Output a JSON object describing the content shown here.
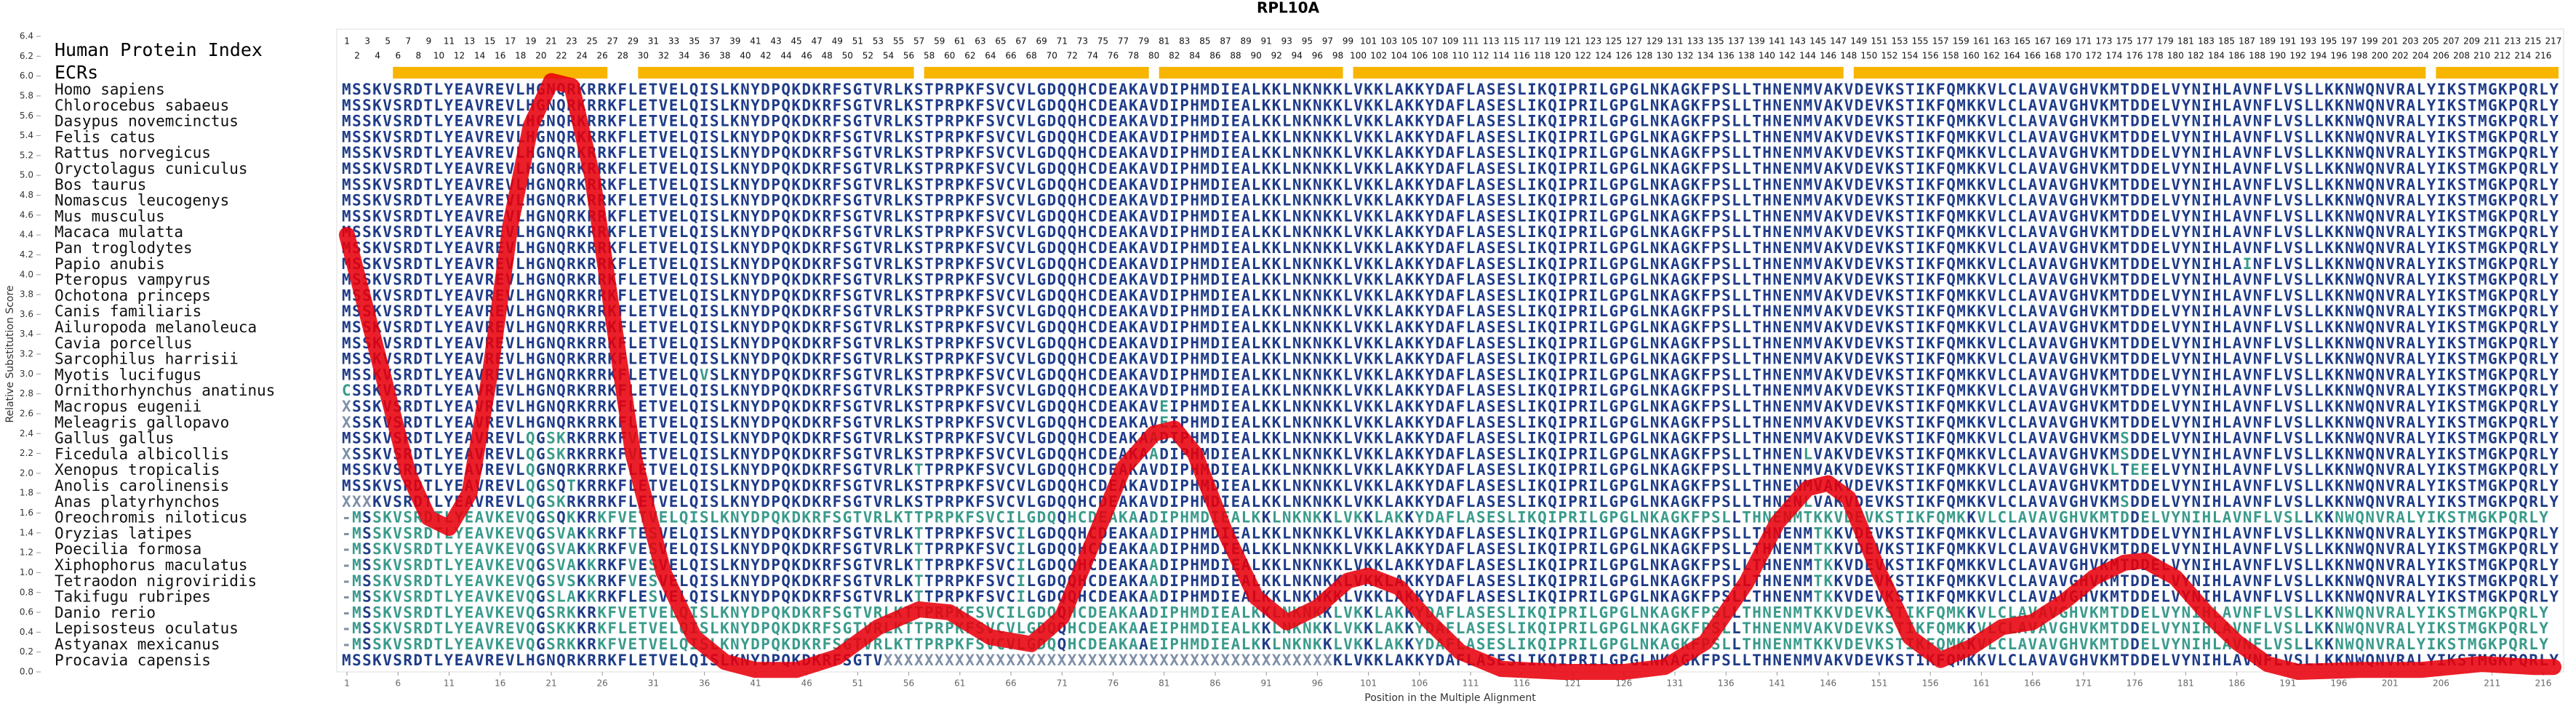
{
  "chart_data": {
    "type": "line",
    "title": "RPL10A",
    "xlabel": "Position in the Multiple Alignment",
    "ylabel": "Relative Substitution Score",
    "index_label": "Human Protein Index",
    "human_index": [
      1,
      2,
      3,
      4,
      5,
      6,
      7,
      8,
      9,
      10,
      11,
      12,
      13,
      14,
      15,
      16,
      17,
      18,
      19,
      20,
      21,
      22,
      23,
      24,
      25,
      26,
      27,
      28,
      29,
      30,
      31,
      32,
      33,
      34,
      35,
      36,
      37,
      38,
      39,
      40,
      41,
      42,
      43,
      44,
      45,
      46,
      47,
      48,
      49,
      50,
      51,
      52,
      53,
      54,
      55,
      56,
      57,
      58,
      59,
      60,
      61,
      62,
      63,
      64,
      65,
      66,
      67,
      68,
      69,
      70,
      71,
      72,
      73,
      74,
      75,
      76,
      77,
      78,
      79,
      80,
      81,
      82,
      83,
      84,
      85,
      86,
      87,
      88,
      89,
      90,
      91,
      92,
      93,
      94,
      95,
      96,
      97,
      98,
      99,
      100,
      101,
      102,
      103,
      104,
      105,
      106,
      107,
      108,
      109,
      110,
      111,
      112,
      113,
      114,
      115,
      116,
      117,
      118,
      119,
      120,
      121,
      122,
      123,
      124,
      125,
      126,
      127,
      128,
      129,
      130,
      131,
      132,
      133,
      134,
      135,
      136,
      137,
      138,
      139,
      140,
      141,
      142,
      143,
      144,
      145,
      146,
      147,
      148,
      149,
      150,
      151,
      152,
      153,
      154,
      155,
      156,
      157,
      158,
      159,
      160,
      161,
      162,
      163,
      164,
      165,
      166,
      167,
      168,
      169,
      170,
      171,
      172,
      173,
      174,
      175,
      176,
      177,
      178,
      179,
      180,
      181,
      182,
      183,
      184,
      185,
      186,
      187,
      188,
      189,
      190,
      191,
      192,
      193,
      194,
      195,
      196,
      197,
      198,
      199,
      200,
      201,
      202,
      203,
      204,
      205,
      206,
      207,
      208,
      209,
      210,
      211,
      212,
      213,
      214,
      215,
      216,
      217
    ],
    "ecr_label": "ECRs",
    "ecr_color": "#f7b500",
    "ecrs": [
      [
        6,
        26
      ],
      [
        30,
        56
      ],
      [
        58,
        79
      ],
      [
        81,
        98
      ],
      [
        100,
        147
      ],
      [
        149,
        204
      ],
      [
        206,
        217
      ]
    ],
    "species": [
      "Homo sapiens",
      "Chlorocebus sabaeus",
      "Dasypus novemcinctus",
      "Felis catus",
      "Rattus norvegicus",
      "Oryctolagus cuniculus",
      "Bos taurus",
      "Nomascus leucogenys",
      "Mus musculus",
      "Macaca mulatta",
      "Pan troglodytes",
      "Papio anubis",
      "Pteropus vampyrus",
      "Ochotona princeps",
      "Canis familiaris",
      "Ailuropoda melanoleuca",
      "Cavia porcellus",
      "Sarcophilus harrisii",
      "Myotis lucifugus",
      "Ornithorhynchus anatinus",
      "Macropus eugenii",
      "Meleagris gallopavo",
      "Gallus gallus",
      "Ficedula albicollis",
      "Xenopus tropicalis",
      "Anolis carolinensis",
      "Anas platyrhynchos",
      "Oreochromis niloticus",
      "Oryzias latipes",
      "Poecilia formosa",
      "Xiphophorus maculatus",
      "Tetraodon nigroviridis",
      "Takifugu rubripes",
      "Danio rerio",
      "Lepisosteus oculatus",
      "Astyanax mexicanus",
      "Procavia capensis"
    ],
    "sequences": [
      "MSSKVSRDTLYEAVREVLHGNQRKRRKFLETVELQISLKNYDPQKDKRFSGTVRLKSTPRPKFSVCVLGDQQHCDEAKAVDIPHMDIEALKKLNKNKKLVKKLAKKYDAFLASESLIKQIPRILGPGLNKAGKFPSLLTHNENMVAKVDEVKSTIKFQMKKVLCLAVAVGHVKMTDDELVYNIHLAVNFLVSLLKKNWQNVRALYIKSTMGKPQRLY",
      "MSSKVSRDTLYEAVREVLHGNQRKRRKFLETVELQISLKNYDPQKDKRFSGTVRLKSTPRPKFSVCVLGDQQHCDEAKAVDIPHMDIEALKKLNKNKKLVKKLAKKYDAFLASESLIKQIPRILGPGLNKAGKFPSLLTHNENMVAKVDEVKSTIKFQMKKVLCLAVAVGHVKMTDDELVYNIHLAVNFLVSLLKKNWQNVRALYIKSTMGKPQRLY",
      "MSSKVSRDTLYEAVREVLHGNQRKRRKFLETVELQISLKNYDPQKDKRFSGTVRLKSTPRPKFSVCVLGDQQHCDEAKAVDIPHMDIEALKKLNKNKKLVKKLAKKYDAFLASESLIKQIPRILGPGLNKAGKFPSLLTHNENMVAKVDEVKSTIKFQMKKVLCLAVAVGHVKMTDDELVYNIHLAVNFLVSLLKKNWQNVRALYIKSTMGKPQRLY",
      "MSSKVSRDTLYEAVREVLHGNQRKRRKFLETVELQISLKNYDPQKDKRFSGTVRLKSTPRPKFSVCVLGDQQHCDEAKAVDIPHMDIEALKKLNKNKKLVKKLAKKYDAFLASESLIKQIPRILGPGLNKAGKFPSLLTHNENMVAKVDEVKSTIKFQMKKVLCLAVAVGHVKMTDDELVYNIHLAVNFLVSLLKKNWQNVRALYIKSTMGKPQRLY",
      "MSSKVSRDTLYEAVREVLHGNQRKRRKFLETVELQISLKNYDPQKDKRFSGTVRLKSTPRPKFSVCVLGDQQHCDEAKAVDIPHMDIEALKKLNKNKKLVKKLAKKYDAFLASESLIKQIPRILGPGLNKAGKFPSLLTHNENMVAKVDEVKSTIKFQMKKVLCLAVAVGHVKMTDDELVYNIHLAVNFLVSLLKKNWQNVRALYIKSTMGKPQRLY",
      "MSSKVSRDTLYEAVREVLHGNQRKRRKFLETVELQISLKNYDPQKDKRFSGTVRLKSTPRPKFSVCVLGDQQHCDEAKAVDIPHMDIEALKKLNKNKKLVKKLAKKYDAFLASESLIKQIPRILGPGLNKAGKFPSLLTHNENMVAKVDEVKSTIKFQMKKVLCLAVAVGHVKMTDDELVYNIHLAVNFLVSLLKKNWQNVRALYIKSTMGKPQRLY",
      "MSSKVSRDTLYEAVREVLHGNQRKRRKFLETVELQISLKNYDPQKDKRFSGTVRLKSTPRPKFSVCVLGDQQHCDEAKAVDIPHMDIEALKKLNKNKKLVKKLAKKYDAFLASESLIKQIPRILGPGLNKAGKFPSLLTHNENMVAKVDEVKSTIKFQMKKVLCLAVAVGHVKMTDDELVYNIHLAVNFLVSLLKKNWQNVRALYIKSTMGKPQRLY",
      "MSSKVSRDTLYEAVREVLHGNQRKRRKFLETVELQISLKNYDPQKDKRFSGTVRLKSTPRPKFSVCVLGDQQHCDEAKAVDIPHMDIEALKKLNKNKKLVKKLAKKYDAFLASESLIKQIPRILGPGLNKAGKFPSLLTHNENMVAKVDEVKSTIKFQMKKVLCLAVAVGHVKMTDDELVYNIHLAVNFLVSLLKKNWQNVRALYIKSTMGKPQRLY",
      "MSSKVSRDTLYEAVREVLHGNQRKRRKFLETVELQISLKNYDPQKDKRFSGTVRLKSTPRPKFSVCVLGDQQHCDEAKAVDIPHMDIEALKKLNKNKKLVKKLAKKYDAFLASESLIKQIPRILGPGLNKAGKFPSLLTHNENMVAKVDEVKSTIKFQMKKVLCLAVAVGHVKMTDDELVYNIHLAVNFLVSLLKKNWQNVRALYIKSTMGKPQRLY",
      "MSSKVSRDTLYEAVREVLHGNQRKRRKFLETVELQISLKNYDPQKDKRFSGTVRLKSTPRPKFSVCVLGDQQHCDEAKAVDIPHMDIEALKKLNKNKKLVKKLAKKYDAFLASESLIKQIPRILGPGLNKAGKFPSLLTHNENMVAKVDEVKSTIKFQMKKVLCLAVAVGHVKMTDDELVYNIHLAVNFLVSLLKKNWQNVRALYIKSTMGKPQRLY",
      "MSSKVSRDTLYEAVREVLHGNQRKRRKFLETVELQISLKNYDPQKDKRFSGTVRLKSTPRPKFSVCVLGDQQHCDEAKAVDIPHMDIEALKKLNKNKKLVKKLAKKYDAFLASESLIKQIPRILGPGLNKAGKFPSLLTHNENMVAKVDEVKSTIKFQMKKVLCLAVAVGHVKMTDDELVYNIHLAVNFLVSLLKKNWQNVRALYIKSTMGKPQRLY",
      "MSSKVSRDTLYEAVREVLHGNQRKRRKFLETVELQISLKNYDPQKDKRFSGTVRLKSTPRPKFSVCVLGDQQHCDEAKAVDIPHMDIEALKKLNKNKKLVKKLAKKYDAFLASESLIKQIPRILGPGLNKAGKFPSLLTHNENMVAKVDEVKSTIKFQMKKVLCLAVAVGHVKMTDDELVYNIHLAINFLVSLLKKNWQNVRALYIKSTMGKPQRLY",
      "MSSKVSRDTLYEAVREVLHGNQRKRRKFLETVELQISLKNYDPQKDKRFSGTVRLKSTPRPKFSVCVLGDQQHCDEAKAVDIPHMDIEALKKLNKNKKLVKKLAKKYDAFLASESLIKQIPRILGPGLNKAGKFPSLLTHNENMVAKVDEVKSTIKFQMKKVLCLAVAVGHVKMTDDELVYNIHLAVNFLVSLLKKNWQNVRALYIKSTMGKPQRLY",
      "MSSKVSRDTLYEAVREVLHGNQRKRRKFLETVELQISLKNYDPQKDKRFSGTVRLKSTPRPKFSVCVLGDQQHCDEAKAVDIPHMDIEALKKLNKNKKLVKKLAKKYDAFLASESLIKQIPRILGPGLNKAGKFPSLLTHNENMVAKVDEVKSTIKFQMKKVLCLAVAVGHVKMTDDELVYNIHLAVNFLVSLLKKNWQNVRALYIKSTMGKPQRLY",
      "MSSKVSRDTLYEAVREVLHGNQRKRRKFLETVELQISLKNYDPQKDKRFSGTVRLKSTPRPKFSVCVLGDQQHCDEAKAVDIPHMDIEALKKLNKNKKLVKKLAKKYDAFLASESLIKQIPRILGPGLNKAGKFPSLLTHNENMVAKVDEVKSTIKFQMKKVLCLAVAVGHVKMTDDELVYNIHLAVNFLVSLLKKNWQNVRALYIKSTMGKPQRLY",
      "MSSKVSRDTLYEAVREVLHGNQRKRRKFLETVELQISLKNYDPQKDKRFSGTVRLKSTPRPKFSVCVLGDQQHCDEAKAVDIPHMDIEALKKLNKNKKLVKKLAKKYDAFLASESLIKQIPRILGPGLNKAGKFPSLLTHNENMVAKVDEVKSTIKFQMKKVLCLAVAVGHVKMTDDELVYNIHLAVNFLVSLLKKNWQNVRALYIKSTMGKPQRLY",
      "MSSKVSRDTLYEAVREVLHGNQRKRRKFLETVELQISLKNYDPQKDKRFSGTVRLKSTPRPKFSVCVLGDQQHCDEAKAVDIPHMDIEALKKLNKNKKLVKKLAKKYDAFLASESLIKQIPRILGPGLNKAGKFPSLLTHNENMVAKVDEVKSTIKFQMKKVLCLAVAVGHVKMTDDELVYNIHLAVNFLVSLLKKNWQNVRALYIKSTMGKPQRLY",
      "MSSKVSRDTLYEAVREVLHGNQRKRRKFLETVELQISLKNYDPQKDKRFSGTVRLKSTPRPKFSVCVLGDQQHCDEAKAVDIPHMDIEALKKLNKNKKLVKKLAKKYDAFLASESLIKQIPRILGPGLNKAGKFPSLLTHNENMVAKVDEVKSTIKFQMKKVLCLAVAVGHVKMTDDELVYNIHLAVNFLVSLLKKNWQNVRALYIKSTMGKPQRLY",
      "MSSKVSRDTLYEAVREVLHGNQRKRRKFLETVELQVSLKNYDPQKDKRFSGTVRLKSTPRPKFSVCVLGDQQHCDEAKAVDIPHMDIEALKKLNKNKKLVKKLAKKYDAFLASESLIKQIPRILGPGLNKAGKFPSLLTHNENMVAKVDEVKSTIKFQMKKVLCLAVAVGHVKMTDDELVYNIHLAVNFLVSLLKKNWQNVRALYIKSTMGKPQRLY",
      "CSSKVSRDTLYEAVREVLHGNQRKRRKFLETVELQISLKNYDPQKDKRFSGTVRLKSTPRPKFSVCVLGDQQHCDEAKAVDIPHMDIEALKKLNKNKKLVKKLAKKYDAFLASESLIKQIPRILGPGLNKAGKFPSLLTHNENMVAKVDEVKSTIKFQMKKVLCLAVAVGHVKMTDDELVYNIHLAVNFLVSLLKKNWQNVRALYIKSTMGKPQRLY",
      "XSSKVSRDTLYEAVREVLHGNQRKRRKFLETVELQISLKNYDPQKDKRFSGTVRLKSTPRPKFSVCVLGDQQHCDEAKAVEIPHMDIEALKKLNKNKKLVKKLAKKYDAFLASESLIKQIPRILGPGLNKAGKFPSLLTHNENMVAKVDEVKSTIKFQMKKVLCLAVAVGHVKMTDDELVYNIHLAVNFLVSLLKKNWQNVRALYIKSTMGKPQRLY",
      "XSSKVSRDTLYEAVREVLHGNQRKRRKFLETVELQISLKNYDPQKDKRFSGTVRLKSTPRPKFSVCVLGDQQHCDEAKAVEIPHMDIEALKKLNKNKKLVKKLAKKYDAFLASESLIKQIPRILGPGLNKAGKFPSLLTHNENMVAKVDEVKSTIKFQMKKVLCLAVAVGHVKMTDDELVYNIHLAVNFLVSLLKKNWQNVRALYIKSTMGKPQRLY",
      "MSSKVSRDTLYEAVREVLQGSKRKRRKFVETVELQISLKNYDPQKDKRFSGTVRLKSTPRPKFSVCVLGDQQHCDEAKAADIPHMDIEALKKLNKNKKLVKKLAKKYDAFLASESLIKQIPRILGPGLNKAGKFPSLLTHNENMVAKVDEVKSTIKFQMKKVLCLAVAVGHVKMSDDELVYNIHLAVNFLVSLLKKNWQNVRALYIKSTMGKPQRLY",
      "XSSKVSRDTLYEAVREVLQGSKRKRRKFVETVELQISLKNYDPQKDKRFSGTVRLKSTPRPKFSVCVLGDQQHCDEAKAADIPHMDIEALKKLNKNKKLVKKLAKKYDAFLASESLIKQIPRILGPGLNKAGKFPSLLTHNENLVAKVDEVKSTIKFQMKKVLCLAVAVGHVKMSDDELVYNIHLAVNFLVSLLKKNWQNVRALYIKSTMGKPQRLY",
      "MSSKVSRDTLYEAVREVLQGNQRKRRKFLETVELQISLKNYDPQKDKRFSGTVRLKTTPRPKFSVCVLGDQQHCDEAKAVDIPHMDIEALKKLNKNKKLVKKLAKKYDAFLASESLIKQIPRILGPGLNKAGKFPSLLTHNENMVAKVDEVKSTIKFQMKKVLCLAVAVGHVKLTEEELVYNIHLAVNFLVSLLKKNWQNVRALYIKSTMGKPQRLY",
      "MSSKVSRDTLYEAVREVLQGSQTKRRKFLETVELQISLKNYDPQKDKRFSGTVRLKSTPRPKFSVCVLGDQQHCDEAKAVDIPHMDIEALKKLNKNKKLVKKLAKKYDAFLASESLIKQIPRILGPGLNKAGKFPSLLTHNENMVAKVDEVKSTIKFQMKKVLCLAVAVGHVKMTDDELVYNIHLAVNFLVSLLKKNWQNVRALYIKSTMGKPQRLY",
      "XXXKVSRDTLYEAVREVLQGSKRKRRKFLETVELQISLKNYDPQKDKRFSGTVRLKSTPRPKFSVCVLGDQQHCDEAKAVDIPHMDIEALKKLNKNKKLVKKLAKKYDAFLASESLIKQIPRILGPGLNKAGKFPSLLTHNENLVAKVDEVKSTIKFQMKKVLCLAVAVGHVKMSDDELVYNIHLAVNFLVSLLKKNWQNVRALYIKSTMGKPQRLY",
      "-MSSKVSRDTLYEAVKEVQGSQKKRKFVETVELQISLKNYDPQKDKRFSGTVRLKTTPRPKFSVCILGDQQHCDEAKAADIPHMDIEALKKLNKNKKLVKKLAKKYDAFLASESLIKQIPRILGPGLNKAGKFPSLLTHNENMTKKVDEVKSTIKFQMKKVLCLAVAVGHVKMTDDELVYNIHLAVNFLVSLLKKNWQNVRALYIKSTMGKPQRLY",
      "-MSSKVSRDTLYEAVKEVQGSVAKKRKFTESVELQISLKNYDPQKDKRFSGTVRLKTTPRPKFSVCILGDQQHCDEAKAADIPHMDIEALKKLNKNKKLVKKLAKKYDAFLASESLIKQIPRILGPGLNKAGKFPSLLTHNENMTKKVDEVKSTIKFQMKKVLCLAVAVGHVKMTDDELVYNIHLAVNFLVSLLKKNWQNVRALYIKSTMGKPQRLY",
      "-MSSKVSRDTLYEAVKEVQGSVAKKRKFVESVELQISLKNYDPQKDKRFSGTVRLKTTPRPKFSVCILGDQQHCDEAKAADIPHMDIEALKKLNKNKKLVKKLAKKYDAFLASESLIKQIPRILGPGLNKAGKFPSLLTHNENMTKKVDEVKSTIKFQMKKVLCLAVAVGHVKMTDDELVYNIHLAVNFLVSLLKKNWQNVRALYIKSTMGKPQRLY",
      "-MSSKVSRDTLYEAVKEVQGSVAKKRKFVESVELQISLKNYDPQKDKRFSGTVRLKTTPRPKFSVCILGDQQHCDEAKAADIPHMDIEALKKLNKNKKLVKKLAKKYDAFLASESLIKQIPRILGPGLNKAGKFPSLLTHNENMTKKVDEVKSTIKFQMKKVLCLAVAVGHVKMTDDELVYNIHLAVNFLVSLLKKNWQNVRALYIKSTMGKPQRLY",
      "-MSSKVSRDTLYEAVKEVQGSVSKKRKFVESVELQISLKNYDPQKDKRFSGTVRLKTTPRPKFSVCILGDQQHCDEAKAADIPHMDIEALKKLNKNKKLVKKLAKKYDAFLASESLIKQIPRILGPGLNKAGKFPSLLTHNENMTKKVDEVKSTIKFQMKKVLCLAVAVGHVKMTDDELVYNIHLAVNFLVSLLKKNWQNVRALYIKSTMGKPQRLY",
      "-MSSKVSRDTLYEAVKEVQGSLAKKRKFLESVELQISLKNYDPQKDKRFSGTVRLKTTPRPKFSVCILGDQQHCDEAKAADIPHMDIEALKKLNKNKKLVKKLAKKYDAFLASESLIKQIPRILGPGLNKAGKFPSLLTHNENMTKKVDEVKSTIKFQMKKVLCLAVAVGHVKMTDDELVYNIHLAVNFLVSLLKKNWQNVRALYIKSTMGKPQRLY",
      "-MSSKVSRDTLYEAVKEVQGSRKKRKFVETVELQISLKNYDPQKDKRFSGTVRLKTTPRPKFSVCILGDQQHCDEAKAADIPHMDIEALKKLNKNKKLVKKLAKKYDAFLASESLIKQIPRILGPGLNKAGKFPSLLTHNENMTKKVDEVKSTIKFQMKKVLCLAVAVGHVKMTDDELVYNIHLAVNFLVSLLKKNWQNVRALYIKSTMGKPQRLY",
      "-MSSKVSRDTLYEAVREVQGSKKKRKFLETVELQISLKNYDPQKDKRFSGTVRLKTTPRPKFSVCVLGDQQHCDEAKAAEIPHMDIEALKKLNKNKKLVKKLAKKYDAFLASESLIKQIPRILGPGLNKAGKFPSLLTHNENMVAKVDEVKSTIKFQMKKVLCLAVAVGHVKMTDDELVYNIHLAVNFLVSLLKKNWQNVRALYIKSTMGKPQRLY",
      "-MSSKVSRDTLYEAVKEVQGSRKKRKFVETVELQISLKNYDPQKDKRFSGTVRLKTTPRPKFSVCVLGDQQHCDEAKAAEIPHMDIEALKKLNKNKKLVKKLAKKYDAFLASESLIKQIPRILGPGLNKAGKFPSLLTHNENMTKKVDEVKSTIKFQMKKVLCLAVAVGHVKMTDDELVYNIHLAVNFLVSLLKKNWQNVRALYIKSTMGKPQRLY",
      "MSSKVSRDTLYEAVREVLHGNQRKRRKFLETVELQISLKNYDPQKDKRFSGTVXXXXXXXXXXXXXXXXXXXXXXXXXXXXXXXXXXXXXXXXXXXXKLVKKLAKKYDAFLASESLIKQIPRILGPGLNKAGKFPSLLTHNENMVAKVDEVKSTIKFQMKKVLCLAVAVGHVKMTDDELVYNIHLAVNFLVSLLKKNWQNVRALYIKSTMGKPQRLY"
    ],
    "color": "#e8000b",
    "x": [
      1,
      4,
      7,
      9,
      11,
      13,
      15,
      17,
      19,
      21,
      23,
      25,
      27,
      29,
      32,
      35,
      38,
      41,
      45,
      49,
      53,
      57,
      60,
      64,
      68,
      71,
      74,
      77,
      80,
      82,
      84,
      87,
      90,
      93,
      96,
      99,
      101,
      104,
      107,
      110,
      114,
      120,
      126,
      130,
      134,
      138,
      141,
      144,
      146,
      148,
      151,
      154,
      157,
      160,
      163,
      166,
      169,
      172,
      175,
      177,
      180,
      183,
      186,
      189,
      192,
      198,
      204,
      210,
      215,
      217
    ],
    "values": [
      4.4,
      3.2,
      2.0,
      1.55,
      1.45,
      1.8,
      3.0,
      4.5,
      5.5,
      5.95,
      5.9,
      5.0,
      3.6,
      2.2,
      1.0,
      0.35,
      0.1,
      0.02,
      0.02,
      0.15,
      0.45,
      0.63,
      0.6,
      0.35,
      0.28,
      0.55,
      1.3,
      2.05,
      2.4,
      2.45,
      2.2,
      1.4,
      0.75,
      0.5,
      0.65,
      0.92,
      0.97,
      0.85,
      0.5,
      0.2,
      0.03,
      0.0,
      0.0,
      0.05,
      0.3,
      0.9,
      1.5,
      1.85,
      1.9,
      1.75,
      1.0,
      0.35,
      0.12,
      0.25,
      0.45,
      0.5,
      0.7,
      0.95,
      1.1,
      1.12,
      0.95,
      0.6,
      0.3,
      0.08,
      0.0,
      0.02,
      0.02,
      0.08,
      0.05,
      0.05
    ],
    "xlim": [
      0,
      218
    ],
    "xticks": [
      1,
      6,
      11,
      16,
      21,
      26,
      31,
      36,
      41,
      46,
      51,
      56,
      61,
      66,
      71,
      76,
      81,
      86,
      91,
      96,
      101,
      106,
      111,
      116,
      121,
      126,
      131,
      136,
      141,
      146,
      151,
      156,
      161,
      166,
      171,
      176,
      181,
      186,
      191,
      196,
      201,
      206,
      211,
      216
    ],
    "ylim": [
      0,
      6.4
    ],
    "yticks": [
      {
        "value": 0,
        "label": "0.0"
      },
      0.2,
      0.4,
      0.6,
      0.8,
      {
        "value": 1,
        "label": "1.0"
      },
      1.2,
      1.4,
      1.6,
      1.8,
      {
        "value": 2,
        "label": "2.0"
      },
      2.2,
      2.4,
      2.6,
      2.8,
      {
        "value": 3,
        "label": "3.0"
      },
      3.2,
      3.4,
      3.6,
      3.8,
      {
        "value": 4,
        "label": "4.0"
      },
      4.2,
      4.4,
      4.6,
      4.8,
      {
        "value": 5,
        "label": "5.0"
      },
      5.2,
      5.4,
      5.6,
      5.8,
      {
        "value": 6,
        "label": "6.0"
      },
      6.2,
      6.4
    ]
  }
}
